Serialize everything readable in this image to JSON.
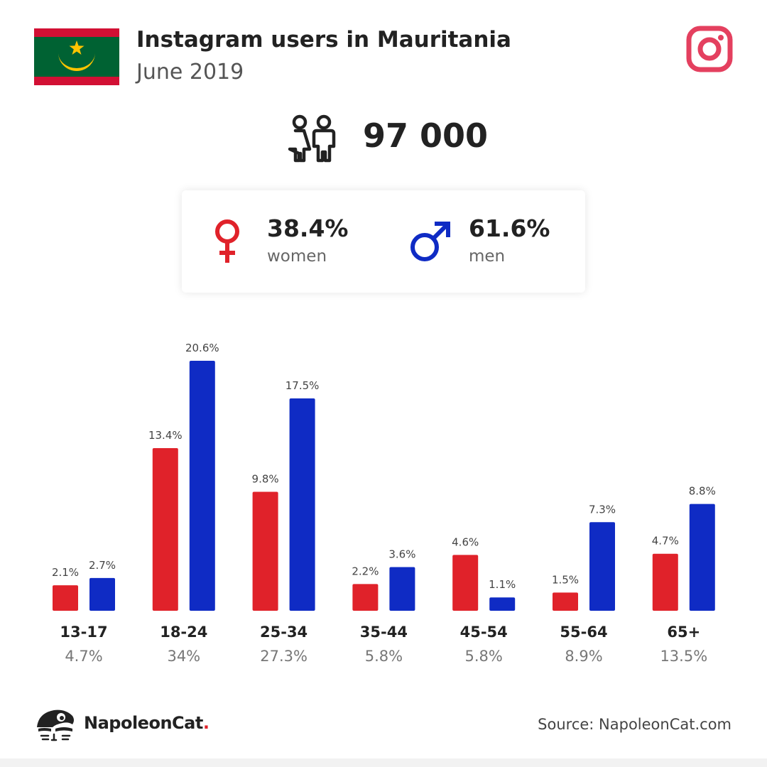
{
  "header": {
    "title": "Instagram users in Mauritania",
    "subtitle": "June 2019"
  },
  "total_users": "97 000",
  "gender": {
    "women_pct": "38.4%",
    "women_label": "women",
    "men_pct": "61.6%",
    "men_label": "men"
  },
  "colors": {
    "women": "#e0222a",
    "men": "#0f2bc4",
    "instagram": "#e4405f",
    "flag_green": "#006233",
    "flag_red": "#d21034",
    "flag_gold": "#ffc400"
  },
  "chart_data": {
    "type": "bar",
    "categories": [
      "13-17",
      "18-24",
      "25-34",
      "35-44",
      "45-54",
      "55-64",
      "65+"
    ],
    "category_totals": [
      "4.7%",
      "34%",
      "27.3%",
      "5.8%",
      "5.8%",
      "8.9%",
      "13.5%"
    ],
    "series": [
      {
        "name": "women",
        "values": [
          2.1,
          13.4,
          9.8,
          2.2,
          4.6,
          1.5,
          4.7
        ],
        "labels": [
          "2.1%",
          "13.4%",
          "9.8%",
          "2.2%",
          "4.6%",
          "1.5%",
          "4.7%"
        ],
        "color": "#e0222a"
      },
      {
        "name": "men",
        "values": [
          2.7,
          20.6,
          17.5,
          3.6,
          1.1,
          7.3,
          8.8
        ],
        "labels": [
          "2.7%",
          "20.6%",
          "17.5%",
          "3.6%",
          "1.1%",
          "7.3%",
          "8.8%"
        ],
        "color": "#0f2bc4"
      }
    ],
    "ylim": [
      0,
      20.6
    ]
  },
  "footer": {
    "brand": "NapoleonCat",
    "brand_dot": ".",
    "source": "Source: NapoleonCat.com"
  }
}
